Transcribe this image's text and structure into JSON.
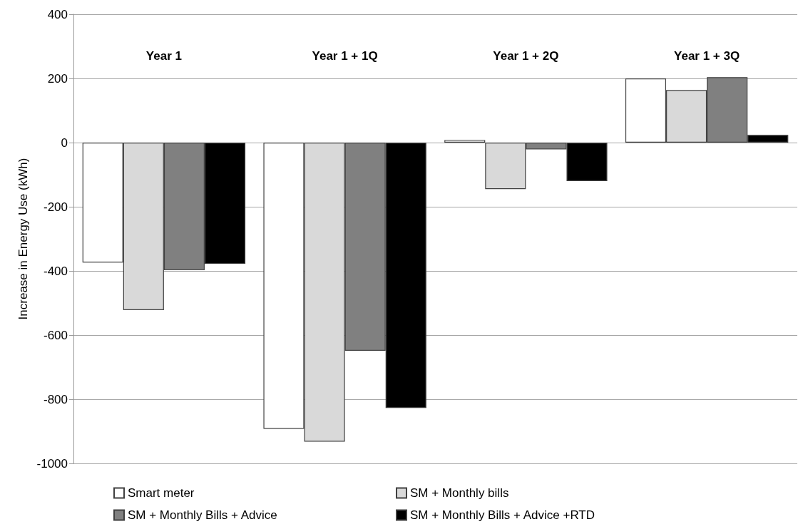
{
  "chart_data": {
    "type": "bar",
    "ylabel": "Increase in Energy Use (kWh)",
    "categories": [
      "Year 1",
      "Year 1 + 1Q",
      "Year 1 + 2Q",
      "Year 1 + 3Q"
    ],
    "series": [
      {
        "name": "Smart meter",
        "color": "#ffffff",
        "values": [
          -374,
          -892,
          8,
          200
        ]
      },
      {
        "name": "SM + Monthly bills",
        "color": "#d9d9d9",
        "values": [
          -522,
          -932,
          -145,
          164
        ]
      },
      {
        "name": "SM + Monthly Bills + Advice",
        "color": "#808080",
        "values": [
          -398,
          -649,
          -21,
          204
        ]
      },
      {
        "name": "SM + Monthly Bills + Advice +RTD",
        "color": "#000000",
        "values": [
          -378,
          -827,
          -120,
          24
        ]
      }
    ],
    "ylim": [
      -1000,
      400
    ],
    "yticks": [
      -1000,
      -800,
      -600,
      -400,
      -200,
      0,
      200,
      400
    ],
    "grid": "y",
    "legend": "bottom"
  }
}
